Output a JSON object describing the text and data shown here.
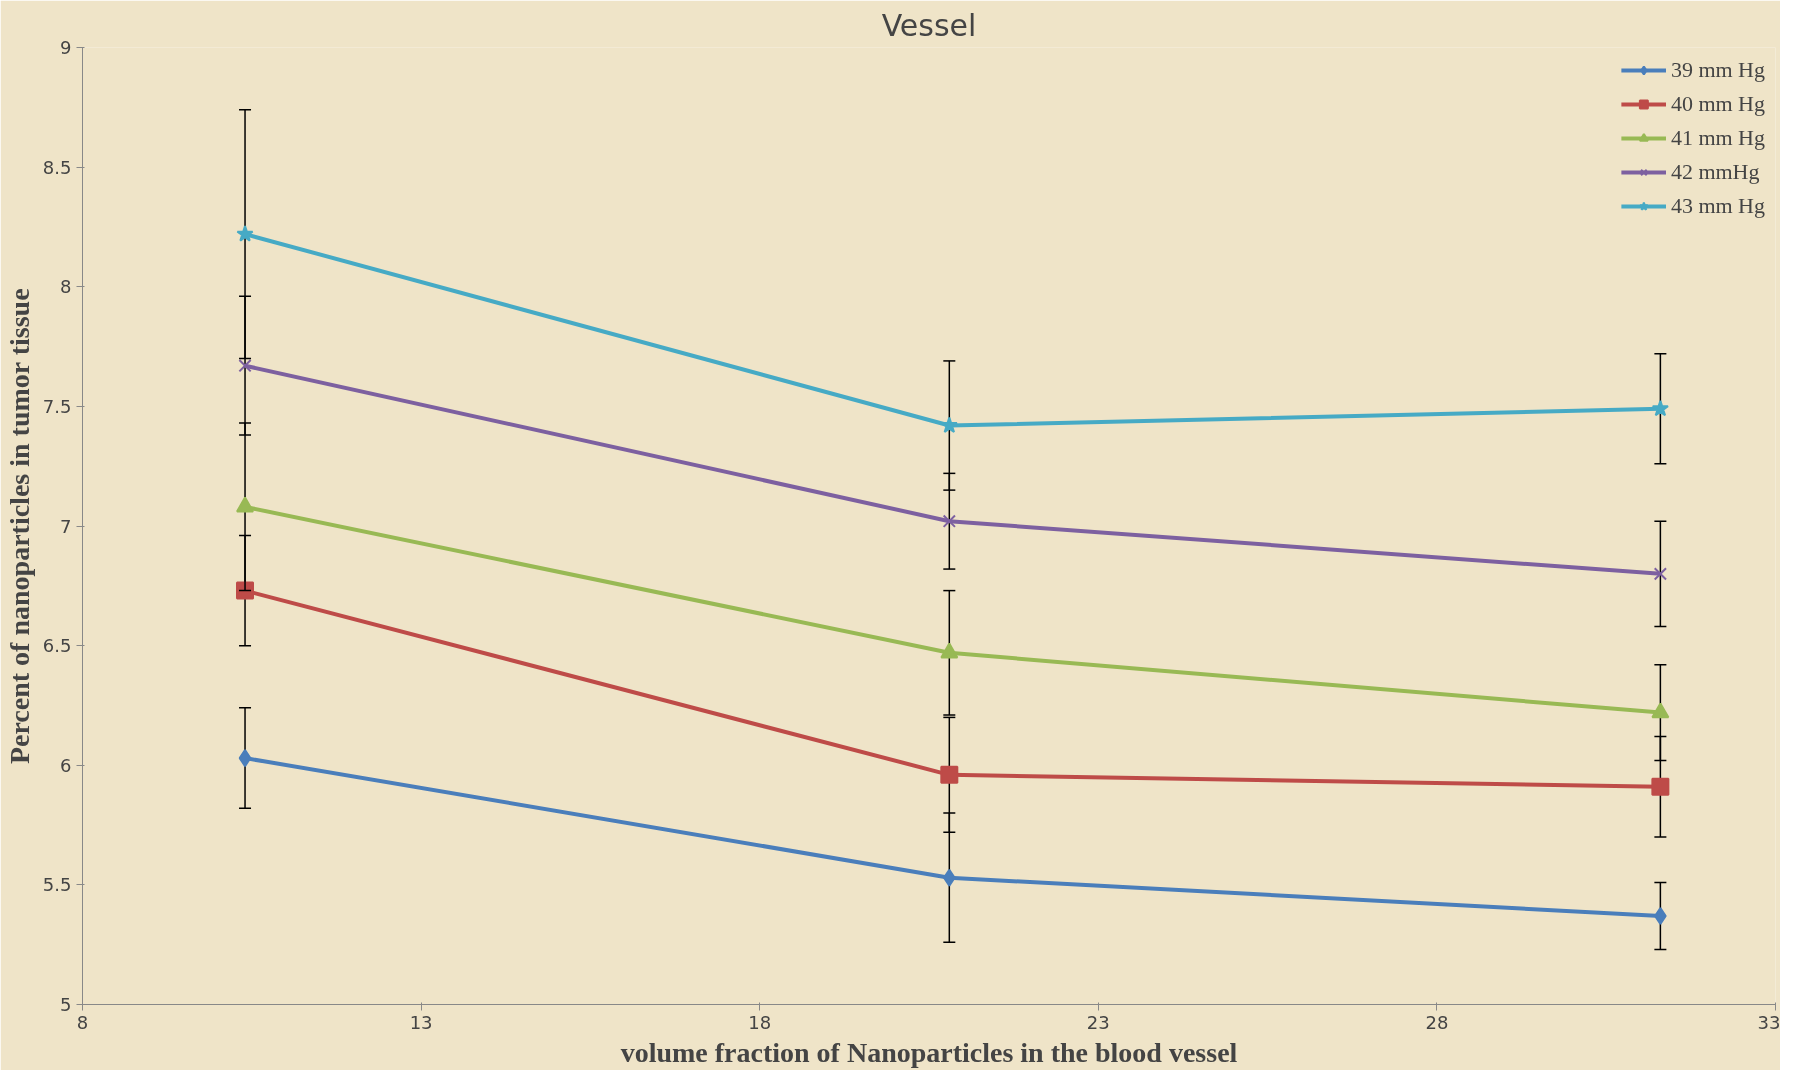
{
  "chart_data": {
    "type": "line",
    "title": "Vessel",
    "xlabel": "volume fraction of Nanoparticles in the blood vessel",
    "ylabel": "Percent of nanoparticles in tumor tissue",
    "x": [
      10.4,
      20.8,
      31.3
    ],
    "xlim": [
      8,
      33
    ],
    "xticks": [
      8,
      13,
      18,
      23,
      28,
      33
    ],
    "ylim": [
      5,
      9
    ],
    "yticks": [
      5,
      5.5,
      6,
      6.5,
      7,
      7.5,
      8,
      8.5,
      9
    ],
    "grid": false,
    "legend": "top right",
    "series": [
      {
        "name": "39 mm Hg",
        "color": "#4a7ebb",
        "marker": "diamond",
        "values": [
          6.03,
          5.53,
          5.37
        ],
        "errors": [
          0.21,
          0.27,
          0.14
        ]
      },
      {
        "name": "40 mm Hg",
        "color": "#be4b48",
        "marker": "square",
        "values": [
          6.73,
          5.96,
          5.91
        ],
        "errors": [
          0.23,
          0.24,
          0.21
        ]
      },
      {
        "name": "41 mm Hg",
        "color": "#98b954",
        "marker": "triangle",
        "values": [
          7.08,
          6.47,
          6.22
        ],
        "errors": [
          0.35,
          0.26,
          0.2
        ]
      },
      {
        "name": "42 mmHg",
        "color": "#7d60a0",
        "marker": "cross",
        "values": [
          7.67,
          7.02,
          6.8
        ],
        "errors": [
          0.29,
          0.2,
          0.22
        ]
      },
      {
        "name": "43 mm Hg",
        "color": "#46aac5",
        "marker": "star",
        "values": [
          8.22,
          7.42,
          7.49
        ],
        "errors": [
          0.52,
          0.27,
          0.23
        ]
      }
    ]
  }
}
